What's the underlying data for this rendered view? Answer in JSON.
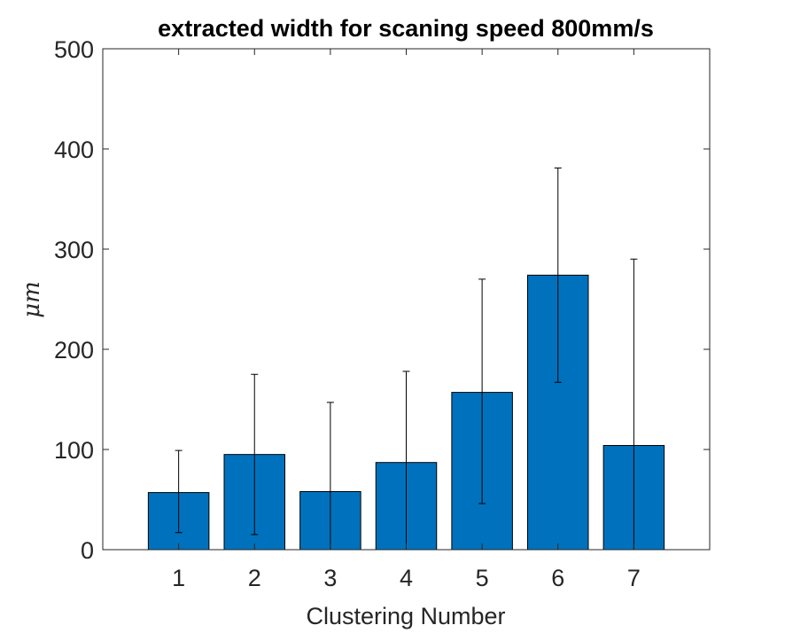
{
  "chart_data": {
    "type": "bar",
    "title": "extracted width for scaning speed 800mm/s",
    "xlabel": "Clustering Number",
    "ylabel": "μm",
    "categories": [
      "1",
      "2",
      "3",
      "4",
      "5",
      "6",
      "7"
    ],
    "values": [
      57,
      95,
      58,
      87,
      157,
      274,
      104
    ],
    "error_bars": {
      "upper": [
        99,
        175,
        147,
        178,
        270,
        381,
        290
      ],
      "lower": [
        17,
        15,
        0,
        0,
        46,
        167,
        0
      ]
    },
    "ylim": [
      0,
      500
    ],
    "xlim": [
      0,
      8
    ],
    "yticks": [
      "0",
      "100",
      "200",
      "300",
      "400",
      "500"
    ],
    "grid": false,
    "colors": {
      "bar": "#0072BD",
      "bar_edge": "#000000",
      "axis": "#262626",
      "error_bar": "#000000"
    }
  }
}
